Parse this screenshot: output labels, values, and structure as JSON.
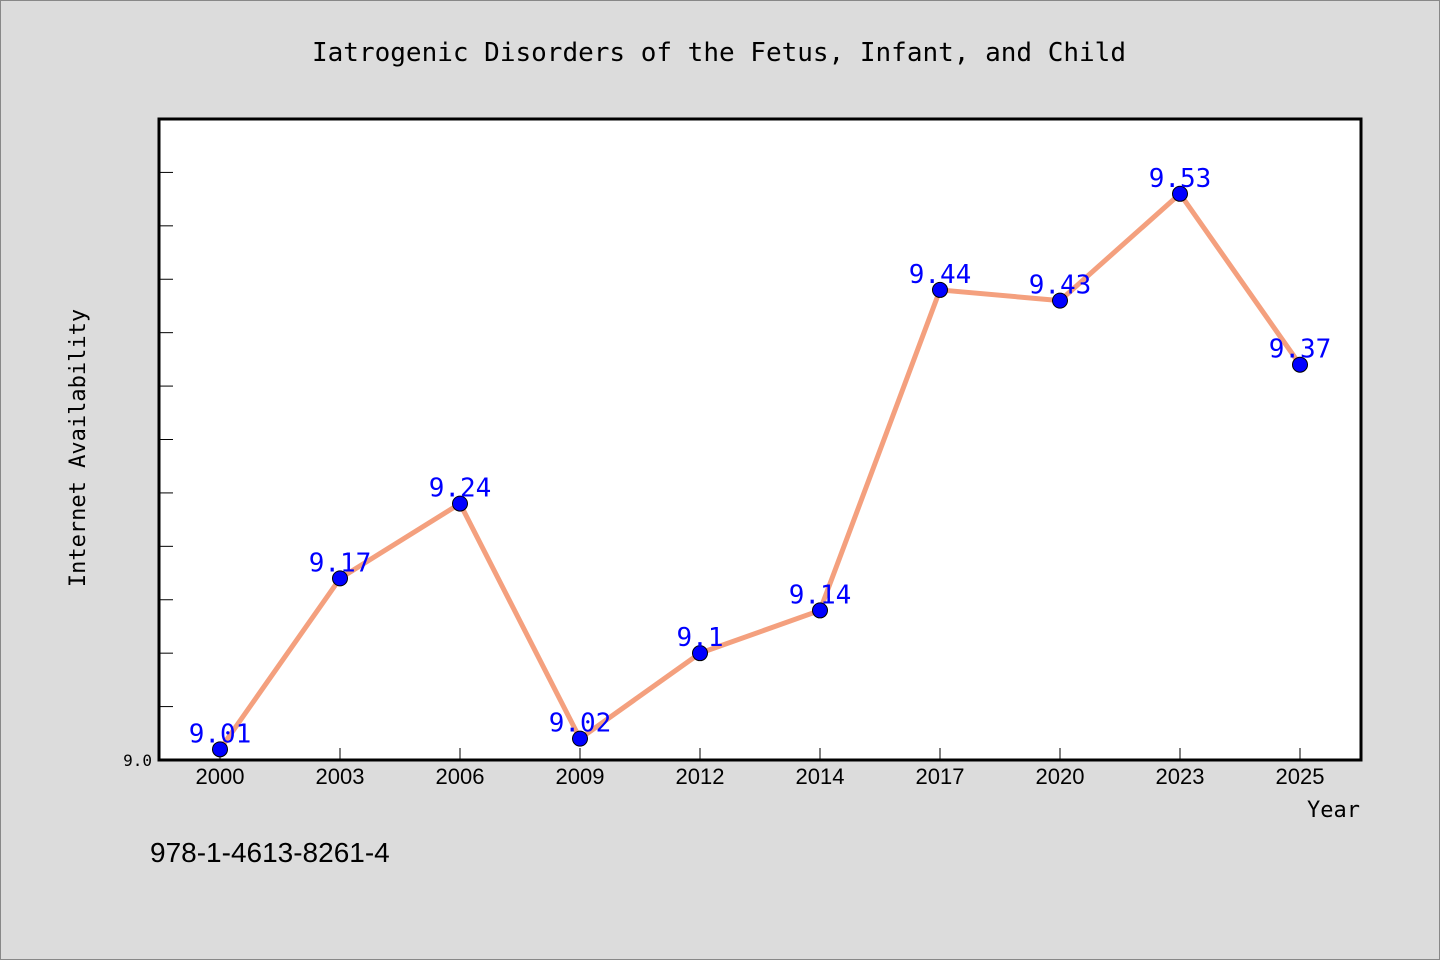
{
  "colors": {
    "background": "#dcdcdc",
    "plot_background": "#ffffff",
    "line": "#f4a07e",
    "marker": "#0000ff",
    "label": "#0000ff"
  },
  "footer": {
    "code": "978-1-4613-8261-4"
  },
  "chart_data": {
    "type": "line",
    "title": "Iatrogenic Disorders of the Fetus, Infant, and Child",
    "xlabel": "Year",
    "ylabel": "Internet Availability",
    "categories": [
      "2000",
      "2003",
      "2006",
      "2009",
      "2012",
      "2014",
      "2017",
      "2020",
      "2023",
      "2025"
    ],
    "series": [
      {
        "values": [
          9.01,
          9.17,
          9.24,
          9.02,
          9.1,
          9.14,
          9.44,
          9.43,
          9.53,
          9.37
        ],
        "labels": [
          "9.01",
          "9.17",
          "9.24",
          "9.02",
          "9.1",
          "9.14",
          "9.44",
          "9.43",
          "9.53",
          "9.37"
        ]
      }
    ],
    "ylim": [
      9.0,
      9.6
    ],
    "y_tick_labels": [
      "9.0"
    ],
    "grid": false,
    "legend": "none"
  }
}
